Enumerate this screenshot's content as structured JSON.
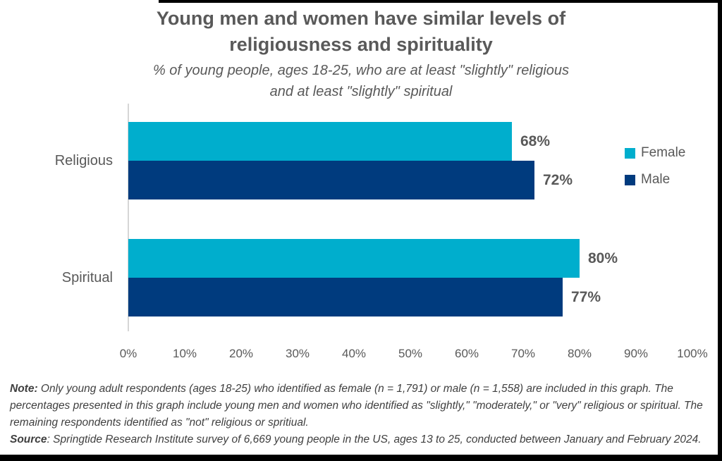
{
  "title": {
    "line1": "Young men and women have similar levels of",
    "line2": "religiousness and spirituality"
  },
  "subtitle": {
    "line1": "% of young people, ages 18-25, who are at least \"slightly\" religious",
    "line2": "and at least \"slightly\" spiritual"
  },
  "colors": {
    "female": "#00AECD",
    "male": "#003B7E",
    "text": "#595959",
    "axis_line": "#D6D6D6",
    "note_text": "#3F3F3F"
  },
  "legend": [
    {
      "label": "Female",
      "color": "#00AECD"
    },
    {
      "label": "Male",
      "color": "#003B7E"
    }
  ],
  "chart_data": {
    "type": "bar",
    "orientation": "horizontal",
    "title": "Young men and women have similar levels of religiousness and spirituality",
    "subtitle": "% of young people, ages 18-25, who are at least \"slightly\" religious and at least \"slightly\" spiritual",
    "categories": [
      "Religious",
      "Spiritual"
    ],
    "series": [
      {
        "name": "Female",
        "color": "#00AECD",
        "values": [
          68,
          80
        ],
        "labels": [
          "68%",
          "80%"
        ]
      },
      {
        "name": "Male",
        "color": "#003B7E",
        "values": [
          72,
          77
        ],
        "labels": [
          "72%",
          "77%"
        ]
      }
    ],
    "x_axis": {
      "min": 0,
      "max": 100,
      "tick_step": 10,
      "tick_labels": [
        "0%",
        "10%",
        "20%",
        "30%",
        "40%",
        "50%",
        "60%",
        "70%",
        "80%",
        "90%",
        "100%"
      ]
    },
    "ylabel": "",
    "xlabel": "",
    "grid": false,
    "legend_position": "right",
    "value_labels_shown": true
  },
  "notes": {
    "note_label": "Note:",
    "note_text": " Only young adult respondents (ages 18-25) who identified as female (n = 1,791) or male (n = 1,558) are included in this graph. The percentages presented in this graph include young men and women who identified as \"slightly,\" \"moderately,\" or \"very\" religious or spiritual. The remaining respondents identified as \"not\" religious or spritiual.",
    "source_label": "Source",
    "source_text": ": Springtide Research Institute survey of 6,669 young people in the US, ages 13 to 25, conducted between January and February 2024."
  }
}
